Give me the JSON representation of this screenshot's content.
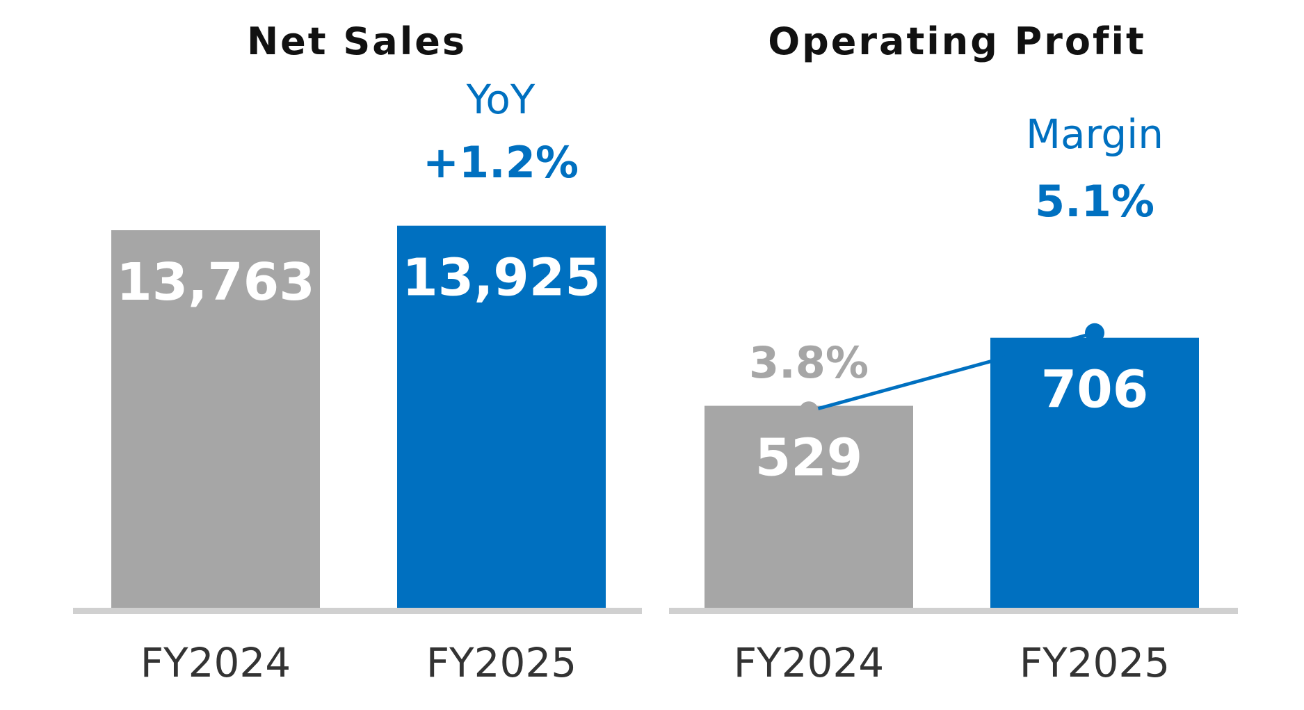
{
  "colors": {
    "prior": "#a6a6a6",
    "current": "#0070c0",
    "baseline": "#d0d0d0",
    "title": "#111111",
    "category": "#333333",
    "bar_label": "#ffffff"
  },
  "chart_data": [
    {
      "type": "bar",
      "title": "Net Sales",
      "categories": [
        "FY2024",
        "FY2025"
      ],
      "values": [
        13763,
        13925
      ],
      "value_labels": [
        "13,763",
        "13,925"
      ],
      "ylim": [
        0,
        14800
      ],
      "annotation": {
        "head": "YoY",
        "value": "+1.2%"
      }
    },
    {
      "type": "bar",
      "title": "Operating Profit",
      "categories": [
        "FY2024",
        "FY2025"
      ],
      "values": [
        529,
        706
      ],
      "value_labels": [
        "529",
        "706"
      ],
      "ylim": [
        0,
        1060
      ],
      "annotation": {
        "head": "Margin",
        "value": "5.1%"
      },
      "margin_line": {
        "values": [
          3.8,
          5.1
        ],
        "labels": [
          "3.8%",
          "5.1%"
        ],
        "ylim": [
          0,
          8.9
        ]
      }
    }
  ]
}
